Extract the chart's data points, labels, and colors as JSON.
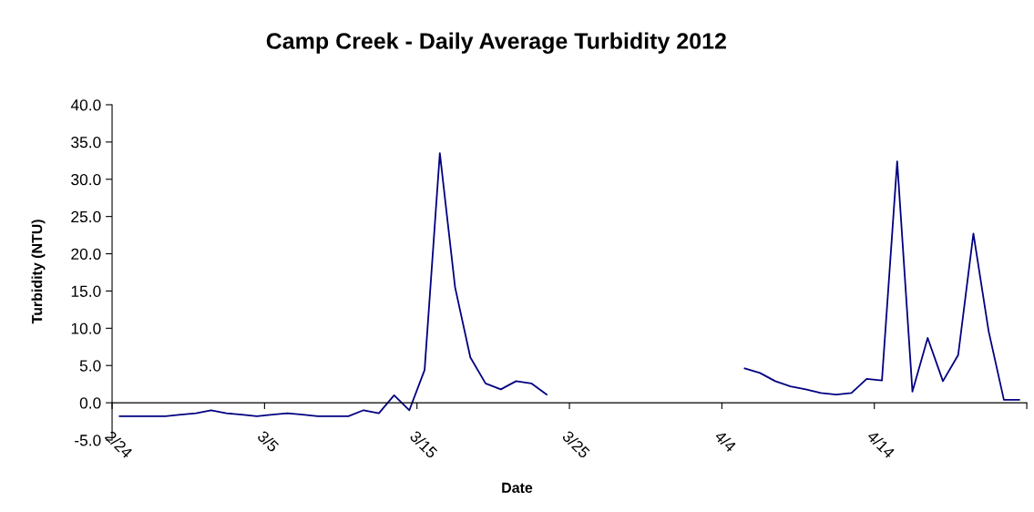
{
  "chart_data": {
    "type": "line",
    "title": "Camp Creek - Daily Average Turbidity 2012",
    "xlabel": "Date",
    "ylabel": "Turbidity (NTU)",
    "x": [
      "2012-02-24T12:00",
      "2012-02-25T12:00",
      "2012-02-26T12:00",
      "2012-02-27T12:00",
      "2012-02-28T12:00",
      "2012-02-29T12:00",
      "2012-03-01T12:00",
      "2012-03-02T12:00",
      "2012-03-03T12:00",
      "2012-03-04T12:00",
      "2012-03-05T12:00",
      "2012-03-06T12:00",
      "2012-03-07T12:00",
      "2012-03-08T12:00",
      "2012-03-09T12:00",
      "2012-03-10T12:00",
      "2012-03-11T12:00",
      "2012-03-12T12:00",
      "2012-03-13T12:00",
      "2012-03-14T12:00",
      "2012-03-15T12:00",
      "2012-03-16T12:00",
      "2012-03-17T12:00",
      "2012-03-18T12:00",
      "2012-03-19T12:00",
      "2012-03-20T12:00",
      "2012-03-21T12:00",
      "2012-03-22T12:00",
      "2012-03-23T12:00",
      "2012-03-24T12:00",
      "2012-03-25T12:00",
      "2012-03-26T12:00",
      "2012-03-27T12:00",
      "2012-03-28T12:00",
      "2012-03-29T12:00",
      "2012-03-30T12:00",
      "2012-03-31T12:00",
      "2012-04-01T12:00",
      "2012-04-02T12:00",
      "2012-04-03T12:00",
      "2012-04-04T12:00",
      "2012-04-05T12:00",
      "2012-04-06T12:00",
      "2012-04-07T12:00",
      "2012-04-08T12:00",
      "2012-04-09T12:00",
      "2012-04-10T12:00",
      "2012-04-11T12:00",
      "2012-04-12T12:00",
      "2012-04-13T12:00",
      "2012-04-14T12:00",
      "2012-04-15T12:00",
      "2012-04-16T12:00",
      "2012-04-17T12:00",
      "2012-04-18T12:00",
      "2012-04-19T12:00",
      "2012-04-20T12:00",
      "2012-04-21T12:00",
      "2012-04-22T12:00",
      "2012-04-23T12:00"
    ],
    "series": [
      {
        "color": "#000080",
        "values": [
          -1.8,
          -1.8,
          -1.8,
          -1.8,
          -1.6,
          -1.4,
          -1.0,
          -1.4,
          -1.6,
          -1.8,
          -1.6,
          -1.4,
          -1.6,
          -1.8,
          -1.8,
          -1.8,
          -1.0,
          -1.4,
          1.0,
          -1.0,
          4.4,
          33.5,
          15.5,
          6.1,
          2.6,
          1.8,
          2.9,
          2.6,
          1.1,
          null,
          null,
          null,
          null,
          null,
          null,
          null,
          null,
          null,
          null,
          null,
          null,
          4.6,
          4.0,
          2.9,
          2.2,
          1.8,
          1.3,
          1.1,
          1.3,
          3.2,
          3.0,
          32.4,
          1.5,
          8.7,
          2.9,
          6.4,
          22.7,
          9.6,
          0.4,
          0.4
        ]
      }
    ],
    "xlim": [
      "2012-02-24",
      "2012-04-24"
    ],
    "xticks": [
      {
        "value": "2012-02-24",
        "label": "2/24"
      },
      {
        "value": "2012-03-05",
        "label": "3/5"
      },
      {
        "value": "2012-03-15",
        "label": "3/15"
      },
      {
        "value": "2012-03-25",
        "label": "3/25"
      },
      {
        "value": "2012-04-04",
        "label": "4/4"
      },
      {
        "value": "2012-04-14",
        "label": "4/14"
      },
      {
        "value": "2012-04-24",
        "label": null
      }
    ],
    "ylim": [
      -5,
      40
    ],
    "yticks": [
      {
        "value": -5,
        "label": "-5.0"
      },
      {
        "value": 0,
        "label": "0.0"
      },
      {
        "value": 5,
        "label": "5.0"
      },
      {
        "value": 10,
        "label": "10.0"
      },
      {
        "value": 15,
        "label": "15.0"
      },
      {
        "value": 20,
        "label": "20.0"
      },
      {
        "value": 25,
        "label": "25.0"
      },
      {
        "value": 30,
        "label": "30.0"
      },
      {
        "value": 35,
        "label": "35.0"
      },
      {
        "value": 40,
        "label": "40.0"
      }
    ],
    "marker": "none",
    "line_style": "solid"
  }
}
